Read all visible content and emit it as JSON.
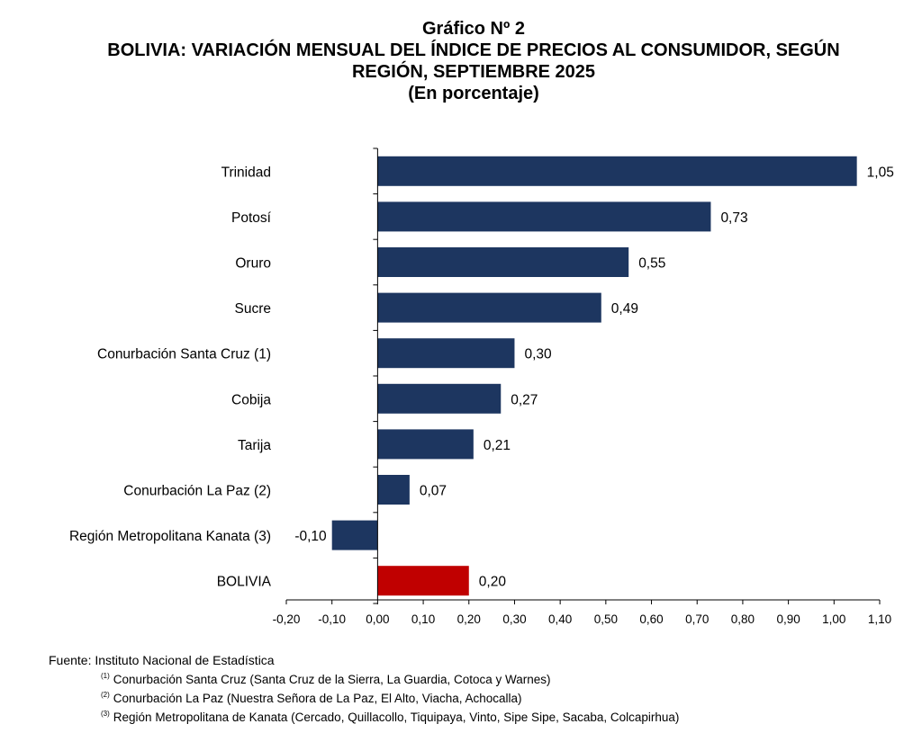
{
  "chart_data": {
    "type": "bar",
    "orientation": "horizontal",
    "title": "Gráfico Nº 2",
    "subtitle_lines": [
      "BOLIVIA: VARIACIÓN MENSUAL DEL ÍNDICE DE PRECIOS AL CONSUMIDOR, SEGÚN",
      "REGIÓN, SEPTIEMBRE 2025"
    ],
    "units": "(En porcentaje)",
    "categories": [
      "Trinidad",
      "Potosí",
      "Oruro",
      "Sucre",
      "Conurbación Santa Cruz (1)",
      "Cobija",
      "Tarija",
      "Conurbación La Paz (2)",
      "Región Metropolitana Kanata (3)",
      "BOLIVIA"
    ],
    "values": [
      1.05,
      0.73,
      0.55,
      0.49,
      0.3,
      0.27,
      0.21,
      0.07,
      -0.1,
      0.2
    ],
    "value_labels": [
      "1,05",
      "0,73",
      "0,55",
      "0,49",
      "0,30",
      "0,27",
      "0,21",
      "0,07",
      "-0,10",
      "0,20"
    ],
    "xlim": [
      -0.2,
      1.1
    ],
    "x_ticks": [
      -0.2,
      -0.1,
      0.0,
      0.1,
      0.2,
      0.3,
      0.4,
      0.5,
      0.6,
      0.7,
      0.8,
      0.9,
      1.0,
      1.1
    ],
    "x_tick_labels": [
      "-0,20",
      "-0,10",
      "0,00",
      "0,10",
      "0,20",
      "0,30",
      "0,40",
      "0,50",
      "0,60",
      "0,70",
      "0,80",
      "0,90",
      "1,00",
      "1,10"
    ],
    "grid": false,
    "colors": {
      "default": "#1d3660",
      "highlight": "#c00000"
    },
    "highlight_category": "BOLIVIA"
  },
  "footer": {
    "source": "Fuente: Instituto Nacional de Estadística",
    "notes": [
      {
        "mark": "(1)",
        "text": "Conurbación Santa Cruz (Santa Cruz de la Sierra, La Guardia, Cotoca y Warnes)"
      },
      {
        "mark": "(2)",
        "text": "Conurbación La Paz (Nuestra Señora de La Paz, El Alto, Viacha, Achocalla)"
      },
      {
        "mark": "(3)",
        "text": "Región Metropolitana de Kanata (Cercado, Quillacollo, Tiquipaya, Vinto, Sipe Sipe, Sacaba, Colcapirhua)"
      }
    ]
  }
}
